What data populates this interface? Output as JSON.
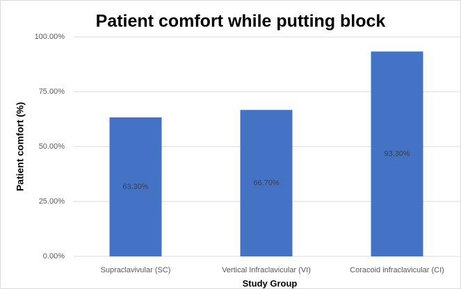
{
  "chart_data": {
    "type": "bar",
    "title": "Patient comfort while putting block",
    "x_label": "Study Group",
    "y_label": "Patient comfort (%)",
    "categories": [
      "Supraclavivular (SC)",
      "Vertical Infraclavicular (VI)",
      "Coracoid infraclavicular (CI)"
    ],
    "values": [
      63.3,
      66.7,
      93.3
    ],
    "value_labels": [
      "63.30%",
      "66.70%",
      "93.30%"
    ],
    "color": "#4472c4",
    "ylim": [
      0,
      100
    ],
    "yticks": [
      {
        "value": 0,
        "label": "0.00%"
      },
      {
        "value": 25,
        "label": "25.00%"
      },
      {
        "value": 50,
        "label": "50.00%"
      },
      {
        "value": 75,
        "label": "75.00%"
      },
      {
        "value": 100,
        "label": "100.00%"
      }
    ],
    "grid": true
  }
}
